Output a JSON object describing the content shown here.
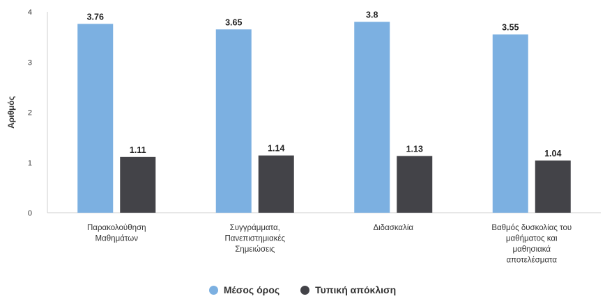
{
  "chart_data": {
    "type": "bar",
    "ylabel": "Αριθμός",
    "xlabel": "",
    "ylim": [
      0,
      4
    ],
    "yticks": [
      0,
      1,
      2,
      3,
      4
    ],
    "grid": false,
    "legend_position": "bottom",
    "categories": [
      [
        "Παρακολούθηση",
        "Μαθημάτων"
      ],
      [
        "Συγγράμματα,",
        "Πανεπιστημιακές",
        "Σημειώσεις"
      ],
      [
        "Διδασκαλία"
      ],
      [
        "Βαθμός δυσκολίας του",
        "μαθήματος και",
        "μαθησιακά",
        "αποτελέσματα"
      ]
    ],
    "series": [
      {
        "name": "Μέσος όρος",
        "color": "#7cb0e1",
        "values": [
          3.76,
          3.65,
          3.8,
          3.55
        ]
      },
      {
        "name": "Τυπική απόκλιση",
        "color": "#434348",
        "values": [
          1.11,
          1.14,
          1.13,
          1.04
        ]
      }
    ]
  }
}
